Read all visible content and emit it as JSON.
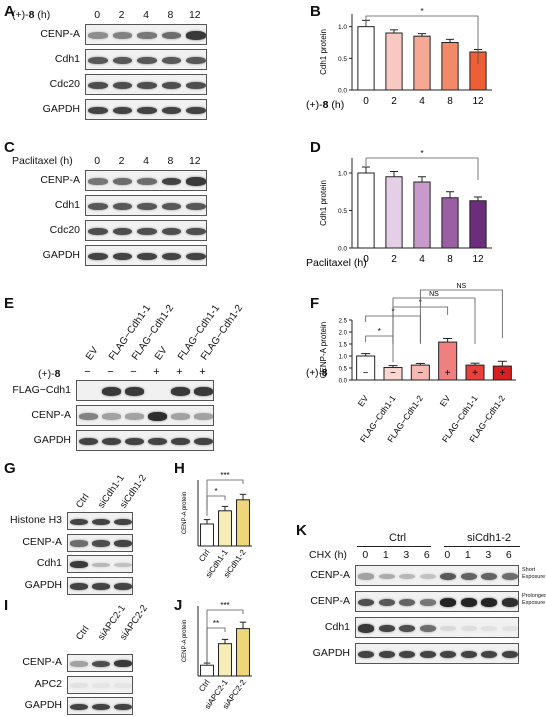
{
  "panels": {
    "A": {
      "letter": "A",
      "treatment_label_prefix": "(+)-",
      "treatment_label_bold": "8",
      "treatment_label_suffix": " (h)",
      "lanes": [
        "0",
        "2",
        "4",
        "8",
        "12"
      ],
      "blots": [
        {
          "name": "CENP-A",
          "intensity": [
            0.45,
            0.5,
            0.55,
            0.6,
            0.85
          ]
        },
        {
          "name": "Cdh1",
          "intensity": [
            0.7,
            0.7,
            0.7,
            0.7,
            0.7
          ]
        },
        {
          "name": "Cdc20",
          "intensity": [
            0.75,
            0.75,
            0.75,
            0.75,
            0.75
          ]
        },
        {
          "name": "GAPDH",
          "intensity": [
            0.8,
            0.8,
            0.8,
            0.8,
            0.8
          ]
        }
      ]
    },
    "C": {
      "letter": "C",
      "treatment_label": "Paclitaxel (h)",
      "lanes": [
        "0",
        "2",
        "4",
        "8",
        "12"
      ],
      "blots": [
        {
          "name": "CENP-A",
          "intensity": [
            0.55,
            0.6,
            0.6,
            0.8,
            0.85
          ]
        },
        {
          "name": "Cdh1",
          "intensity": [
            0.7,
            0.7,
            0.7,
            0.7,
            0.7
          ]
        },
        {
          "name": "Cdc20",
          "intensity": [
            0.75,
            0.75,
            0.75,
            0.75,
            0.75
          ]
        },
        {
          "name": "GAPDH",
          "intensity": [
            0.8,
            0.8,
            0.8,
            0.8,
            0.8
          ]
        }
      ]
    },
    "E": {
      "letter": "E",
      "lanes": [
        "EV",
        "FLAG−Cdh1-1",
        "FLAG−Cdh1-2",
        "EV",
        "FLAG−Cdh1-1",
        "FLAG−Cdh1-2"
      ],
      "treatment_label_prefix": "(+)-",
      "treatment_label_bold": "8",
      "treatment_signs": [
        "−",
        "−",
        "−",
        "+",
        "+",
        "+"
      ],
      "blots": [
        {
          "name": "FLAG−Cdh1",
          "intensity": [
            0,
            0.85,
            0.85,
            0,
            0.85,
            0.85
          ]
        },
        {
          "name": "CENP-A",
          "intensity": [
            0.5,
            0.35,
            0.35,
            0.9,
            0.35,
            0.35
          ]
        },
        {
          "name": "GAPDH",
          "intensity": [
            0.8,
            0.8,
            0.8,
            0.8,
            0.8,
            0.8
          ]
        }
      ]
    },
    "G": {
      "letter": "G",
      "lanes": [
        "Ctrl",
        "siCdh1-1",
        "siCdh1-2"
      ],
      "blots": [
        {
          "name": "Histone H3",
          "intensity": [
            0.8,
            0.8,
            0.8
          ]
        },
        {
          "name": "CENP-A",
          "intensity": [
            0.6,
            0.75,
            0.8
          ]
        },
        {
          "name": "Cdh1",
          "intensity": [
            0.85,
            0.25,
            0.2
          ]
        },
        {
          "name": "GAPDH",
          "intensity": [
            0.8,
            0.8,
            0.8
          ]
        }
      ]
    },
    "I": {
      "letter": "I",
      "lanes": [
        "Ctrl",
        "siAPC2-1",
        "siAPC2-2"
      ],
      "blots": [
        {
          "name": "CENP-A",
          "intensity": [
            0.35,
            0.75,
            0.85
          ]
        },
        {
          "name": "APC2",
          "intensity": [
            0.05,
            0.03,
            0.03
          ]
        },
        {
          "name": "GAPDH",
          "intensity": [
            0.8,
            0.8,
            0.8
          ]
        }
      ]
    },
    "K": {
      "letter": "K",
      "groups": [
        "Ctrl",
        "siCdh1-2"
      ],
      "cht_label": "CHX (h)",
      "lanes": [
        "0",
        "1",
        "3",
        "6",
        "0",
        "1",
        "3",
        "6"
      ],
      "blots": [
        {
          "name": "CENP-A",
          "note": "Short Exposure",
          "intensity": [
            0.35,
            0.3,
            0.25,
            0.2,
            0.7,
            0.65,
            0.65,
            0.6
          ]
        },
        {
          "name": "CENP-A",
          "note": "Prolonged Exposure",
          "intensity": [
            0.75,
            0.7,
            0.65,
            0.55,
            0.95,
            0.95,
            0.95,
            0.9
          ]
        },
        {
          "name": "Cdh1",
          "note": "",
          "intensity": [
            0.85,
            0.8,
            0.75,
            0.6,
            0.08,
            0.06,
            0.05,
            0.05
          ]
        },
        {
          "name": "GAPDH",
          "note": "",
          "intensity": [
            0.8,
            0.8,
            0.8,
            0.8,
            0.8,
            0.8,
            0.8,
            0.8
          ]
        }
      ]
    }
  },
  "chart_data": [
    {
      "panel": "B",
      "type": "bar",
      "ylabel": "Cdh1 protein",
      "xlabel_prefix": "(+)-",
      "xlabel_bold": "8",
      "xlabel_suffix": " (h)",
      "categories": [
        "0",
        "2",
        "4",
        "8",
        "12"
      ],
      "values": [
        1.0,
        0.9,
        0.85,
        0.75,
        0.6
      ],
      "errors": [
        0.1,
        0.05,
        0.04,
        0.05,
        0.04
      ],
      "colors": [
        "#ffffff",
        "#f7c9c1",
        "#f5a995",
        "#f28a6a",
        "#ee5f36"
      ],
      "ylim": [
        0,
        1.2
      ],
      "yticks": [
        "0.0",
        "0.5",
        "1.0"
      ],
      "significance": [
        {
          "from": 0,
          "to": 4,
          "label": "*"
        }
      ]
    },
    {
      "panel": "D",
      "type": "bar",
      "ylabel": "Cdh1 protein",
      "xlabel": "Paclitaxel (h)",
      "categories": [
        "0",
        "2",
        "4",
        "8",
        "12"
      ],
      "values": [
        1.0,
        0.95,
        0.88,
        0.67,
        0.63
      ],
      "errors": [
        0.08,
        0.07,
        0.07,
        0.08,
        0.05
      ],
      "colors": [
        "#ffffff",
        "#e5cfe6",
        "#c79acb",
        "#9a5ea2",
        "#6b2d7c"
      ],
      "ylim": [
        0,
        1.2
      ],
      "yticks": [
        "0.0",
        "0.5",
        "1.0"
      ],
      "significance": [
        {
          "from": 0,
          "to": 4,
          "label": "*"
        }
      ]
    },
    {
      "panel": "F",
      "type": "bar",
      "ylabel": "CENP-A protein",
      "categories": [
        "EV",
        "FLAG−Cdh1-1",
        "FLAG−Cdh1-2",
        "EV",
        "FLAG−Cdh1-1",
        "FLAG−Cdh1-2"
      ],
      "treatment_prefix": "(+)-",
      "treatment_bold": "8",
      "treatment_signs": [
        "−",
        "−",
        "−",
        "+",
        "+",
        "+"
      ],
      "values": [
        1.0,
        0.52,
        0.62,
        1.58,
        0.62,
        0.58
      ],
      "errors": [
        0.1,
        0.08,
        0.07,
        0.15,
        0.08,
        0.2
      ],
      "colors": [
        "#ffffff",
        "#fbd6d3",
        "#f9b8b2",
        "#f08080",
        "#e8403a",
        "#d92020"
      ],
      "ylim": [
        0,
        2.5
      ],
      "yticks": [
        "0.0",
        "0.5",
        "1.0",
        "1.5",
        "2.0",
        "2.5"
      ],
      "significance": [
        {
          "from": 0,
          "to": 1,
          "label": "*"
        },
        {
          "from": 0,
          "to": 2,
          "label": "*"
        },
        {
          "from": 1,
          "to": 3,
          "label": "*"
        },
        {
          "from": 1,
          "to": 4,
          "label": "NS"
        },
        {
          "from": 2,
          "to": 5,
          "label": "NS"
        }
      ]
    },
    {
      "panel": "H",
      "type": "bar",
      "ylabel": "CENP-A protein",
      "categories": [
        "Ctrl",
        "siCdh1-1",
        "siCdh1-2"
      ],
      "values": [
        1.0,
        1.6,
        2.1
      ],
      "errors": [
        0.2,
        0.2,
        0.25
      ],
      "colors": [
        "#ffffff",
        "#f7eeb7",
        "#efd67a"
      ],
      "ylim": [
        0,
        3
      ],
      "significance": [
        {
          "from": 0,
          "to": 1,
          "label": "*"
        },
        {
          "from": 0,
          "to": 2,
          "label": "***"
        }
      ]
    },
    {
      "panel": "J",
      "type": "bar",
      "ylabel": "CENP-A protein",
      "categories": [
        "Ctrl",
        "siAPC2-1",
        "siAPC2-2"
      ],
      "values": [
        1.0,
        3.0,
        4.4
      ],
      "errors": [
        0.2,
        0.4,
        0.6
      ],
      "colors": [
        "#ffffff",
        "#f7eeb7",
        "#efd67a"
      ],
      "ylim": [
        0,
        6.5
      ],
      "significance": [
        {
          "from": 0,
          "to": 1,
          "label": "**"
        },
        {
          "from": 0,
          "to": 2,
          "label": "***"
        }
      ]
    }
  ]
}
